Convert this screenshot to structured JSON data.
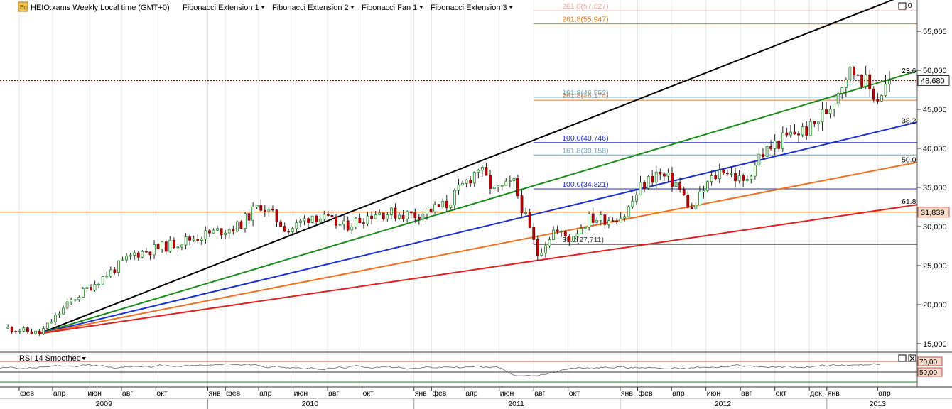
{
  "header": {
    "symbol_title": "HEIO:xams Weekly Local time (GMT+0)",
    "indicators": [
      "Fibonacci Extension 1",
      "Fibonacci Extension 2",
      "Fibonacci Fan 1",
      "Fibonacci Extension 3"
    ]
  },
  "rsi_panel": {
    "title": "RSI 14 Smoothed",
    "levels": [
      "70,00",
      "50,00"
    ]
  },
  "chart_data": {
    "type": "candlestick",
    "instrument": "HEIO:xams",
    "timeframe": "Weekly",
    "price_axis": {
      "ylim": [
        14000,
        59000
      ],
      "ticks": [
        "15,000",
        "20,000",
        "25,000",
        "30,000",
        "35,000",
        "40,000",
        "45,000",
        "50,000",
        "55,000"
      ],
      "tick_values": [
        15000,
        20000,
        25000,
        30000,
        35000,
        40000,
        45000,
        50000,
        55000
      ]
    },
    "price_badges": [
      {
        "label": "48,680",
        "value": 48680,
        "color": "#ffffff",
        "border": "#333333"
      },
      {
        "label": "31,839",
        "value": 31839,
        "color": "#f7d9c8",
        "border": "#c0504d"
      }
    ],
    "month_labels": [
      {
        "label": "фев",
        "date": "2009-02"
      },
      {
        "label": "апр",
        "date": "2009-04"
      },
      {
        "label": "июн",
        "date": "2009-06"
      },
      {
        "label": "авг",
        "date": "2009-08"
      },
      {
        "label": "окт",
        "date": "2009-10"
      },
      {
        "label": "янв",
        "date": "2010-01"
      },
      {
        "label": "фев",
        "date": "2010-02"
      },
      {
        "label": "апр",
        "date": "2010-04"
      },
      {
        "label": "июн",
        "date": "2010-06"
      },
      {
        "label": "авг",
        "date": "2010-08"
      },
      {
        "label": "окт",
        "date": "2010-10"
      },
      {
        "label": "янв",
        "date": "2011-01"
      },
      {
        "label": "фев",
        "date": "2011-02"
      },
      {
        "label": "апр",
        "date": "2011-04"
      },
      {
        "label": "июн",
        "date": "2011-06"
      },
      {
        "label": "авг",
        "date": "2011-08"
      },
      {
        "label": "окт",
        "date": "2011-10"
      },
      {
        "label": "янв",
        "date": "2012-01"
      },
      {
        "label": "фев",
        "date": "2012-02"
      },
      {
        "label": "апр",
        "date": "2012-04"
      },
      {
        "label": "июн",
        "date": "2012-06"
      },
      {
        "label": "авг",
        "date": "2012-08"
      },
      {
        "label": "окт",
        "date": "2012-10"
      },
      {
        "label": "дек",
        "date": "2012-12"
      },
      {
        "label": "янв",
        "date": "2013-01"
      },
      {
        "label": "апр",
        "date": "2013-04"
      }
    ],
    "year_labels": [
      {
        "label": "2009",
        "date": "2009-07"
      },
      {
        "label": "2010",
        "date": "2010-07"
      },
      {
        "label": "2011",
        "date": "2011-07"
      },
      {
        "label": "2012",
        "date": "2012-07"
      },
      {
        "label": "2013",
        "date": "2013-04"
      }
    ],
    "price_path": [
      [
        "2009-01-12",
        17000
      ],
      [
        "2009-03-09",
        16300
      ],
      [
        "2009-05-04",
        20500
      ],
      [
        "2009-06-29",
        23500
      ],
      [
        "2009-08-24",
        26500
      ],
      [
        "2009-10-19",
        27500
      ],
      [
        "2009-12-28",
        29000
      ],
      [
        "2010-02-22",
        30000
      ],
      [
        "2010-04-05",
        32800
      ],
      [
        "2010-05-24",
        29500
      ],
      [
        "2010-07-05",
        31500
      ],
      [
        "2010-08-30",
        30000
      ],
      [
        "2010-10-25",
        31800
      ],
      [
        "2011-01-03",
        31500
      ],
      [
        "2011-02-28",
        32800
      ],
      [
        "2011-04-25",
        37500
      ],
      [
        "2011-05-23",
        34500
      ],
      [
        "2011-06-27",
        35500
      ],
      [
        "2011-08-08",
        26500
      ],
      [
        "2011-09-05",
        29500
      ],
      [
        "2011-10-03",
        28500
      ],
      [
        "2011-11-07",
        31000
      ],
      [
        "2011-12-12",
        31000
      ],
      [
        "2012-01-09",
        31500
      ],
      [
        "2012-02-06",
        35000
      ],
      [
        "2012-03-05",
        36800
      ],
      [
        "2012-04-09",
        35500
      ],
      [
        "2012-05-07",
        32000
      ],
      [
        "2012-06-04",
        35500
      ],
      [
        "2012-07-02",
        37500
      ],
      [
        "2012-08-06",
        35500
      ],
      [
        "2012-09-03",
        39000
      ],
      [
        "2012-10-01",
        40500
      ],
      [
        "2012-11-05",
        42000
      ],
      [
        "2012-12-03",
        42500
      ],
      [
        "2013-01-07",
        45500
      ],
      [
        "2013-02-04",
        49500
      ],
      [
        "2013-02-25",
        50000
      ],
      [
        "2013-03-18",
        47500
      ],
      [
        "2013-04-01",
        46500
      ],
      [
        "2013-04-22",
        48680
      ]
    ],
    "last_close": 48680,
    "levels_horizontal": [
      {
        "label": "261.8(55,947)",
        "value": 55947,
        "color": "#e07b20",
        "x_start": "2011-08-01"
      },
      {
        "label": "261.8(57,627)",
        "value": 57627,
        "color": "#f0a0a0",
        "x_start": "2011-08-01"
      },
      {
        "label": "261.8(46,174)",
        "value": 46174,
        "color": "#e07b20",
        "x_start": "2011-08-01"
      },
      {
        "label": "161.8(46,552)",
        "value": 46552,
        "color": "#70a8c0",
        "x_start": "2011-08-01"
      },
      {
        "label": "100.0(40,746)",
        "value": 40746,
        "color": "#2030c0",
        "x_start": "2011-08-01"
      },
      {
        "label": "161.8(39,158)",
        "value": 39158,
        "color": "#70a8c0",
        "x_start": "2011-08-01"
      },
      {
        "label": "100.0(34,821)",
        "value": 34821,
        "color": "#2030c0",
        "x_start": "2011-08-01"
      },
      {
        "label": "38.2(27,711)",
        "value": 27711,
        "color": "#333333",
        "x_start": "2011-08-01"
      }
    ],
    "guide_lines": [
      {
        "value": 48680,
        "color": "#c00000",
        "style": "dotted"
      },
      {
        "value": 31839,
        "color": "#e07b20",
        "style": "solid"
      }
    ],
    "fan": {
      "origin": [
        "2009-03-09",
        16300
      ],
      "rays": [
        {
          "label": "0.0",
          "color": "#000000",
          "end": [
            "2013-06-01",
            60000
          ]
        },
        {
          "label": "23.6",
          "color": "#1a8a1a",
          "end": [
            "2013-06-01",
            49700
          ]
        },
        {
          "label": "38.2",
          "color": "#1a2fd0",
          "end": [
            "2013-06-01",
            43200
          ]
        },
        {
          "label": "50.0",
          "color": "#f07020",
          "end": [
            "2013-06-01",
            38100
          ]
        },
        {
          "label": "61.8",
          "color": "#e02020",
          "end": [
            "2013-06-01",
            32700
          ]
        }
      ]
    },
    "rsi": {
      "name": "RSI 14 Smoothed",
      "levels": [
        70,
        50
      ],
      "ylim": [
        0,
        100
      ]
    }
  }
}
